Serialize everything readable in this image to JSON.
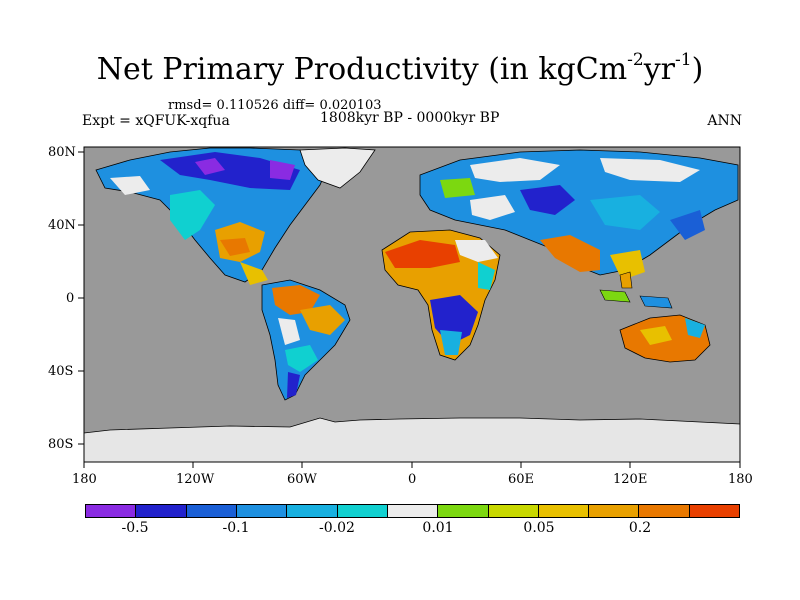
{
  "title": {
    "main": "Net Primary Productivity (in kgCm",
    "sup1": "-2",
    "mid": "yr",
    "sup2": "-1",
    "end": ")"
  },
  "stats": "rmsd= 0.110526 diff= 0.020103",
  "experiment": "Expt = xQFUK-xqfua",
  "period": "1808kyr BP - 0000kyr BP",
  "season": "ANN",
  "axes": {
    "x_ticks": [
      "180",
      "120W",
      "60W",
      "0",
      "60E",
      "120E",
      "180"
    ],
    "y_ticks": [
      "80N",
      "40N",
      "0",
      "40S",
      "80S"
    ]
  },
  "colors": {
    "ocean": "#999999",
    "ice": "#e6e6e6"
  },
  "colorbar": {
    "colors": [
      "#8a2be2",
      "#2222cc",
      "#1a5fd6",
      "#1e90e0",
      "#18b0e0",
      "#10d0d0",
      "#ececec",
      "#7cd810",
      "#c8d800",
      "#e8c000",
      "#e8a000",
      "#e87800",
      "#e84000"
    ],
    "labels": [
      "-0.5",
      "-0.1",
      "-0.02",
      "0.01",
      "0.05",
      "0.2"
    ]
  }
}
